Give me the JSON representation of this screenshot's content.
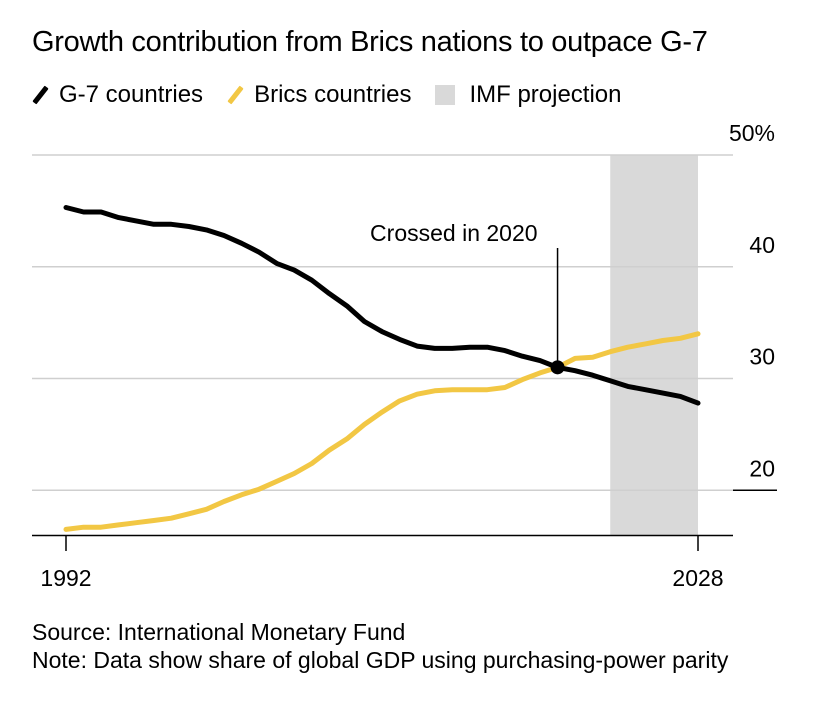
{
  "title": "Growth contribution from Brics nations to outpace G-7",
  "legend": [
    {
      "label": "G-7 countries",
      "color": "#000000",
      "kind": "line"
    },
    {
      "label": "Brics countries",
      "color": "#f2c744",
      "kind": "line"
    },
    {
      "label": "IMF projection",
      "color": "#d9d9d9",
      "kind": "box"
    }
  ],
  "chart_data": {
    "type": "line",
    "title": "Growth contribution from Brics nations to outpace G-7",
    "xlim": [
      1992,
      2028
    ],
    "ylim": [
      16,
      50
    ],
    "x_tick_labels": [
      "1992",
      "2028"
    ],
    "y_ticks": [
      {
        "value": 50,
        "label": "50%"
      },
      {
        "value": 40,
        "label": "40"
      },
      {
        "value": 30,
        "label": "30"
      },
      {
        "value": 20,
        "label": "20"
      }
    ],
    "grid": true,
    "shaded_region": {
      "label": "IMF projection",
      "x_start": 2023,
      "x_end": 2028
    },
    "series": [
      {
        "name": "G-7 countries",
        "color": "#000000",
        "x": [
          1992,
          1993,
          1994,
          1995,
          1996,
          1997,
          1998,
          1999,
          2000,
          2001,
          2002,
          2003,
          2004,
          2005,
          2006,
          2007,
          2008,
          2009,
          2010,
          2011,
          2012,
          2013,
          2014,
          2015,
          2016,
          2017,
          2018,
          2019,
          2020,
          2021,
          2022,
          2023,
          2024,
          2025,
          2026,
          2027,
          2028
        ],
        "values": [
          45.3,
          44.9,
          44.9,
          44.4,
          44.1,
          43.8,
          43.8,
          43.6,
          43.3,
          42.8,
          42.1,
          41.3,
          40.3,
          39.7,
          38.8,
          37.6,
          36.5,
          35.1,
          34.2,
          33.5,
          32.9,
          32.7,
          32.7,
          32.8,
          32.8,
          32.5,
          32.0,
          31.6,
          31.0,
          30.7,
          30.3,
          29.8,
          29.3,
          29.0,
          28.7,
          28.4,
          27.8
        ]
      },
      {
        "name": "Brics countries",
        "color": "#f2c744",
        "x": [
          1992,
          1993,
          1994,
          1995,
          1996,
          1997,
          1998,
          1999,
          2000,
          2001,
          2002,
          2003,
          2004,
          2005,
          2006,
          2007,
          2008,
          2009,
          2010,
          2011,
          2012,
          2013,
          2014,
          2015,
          2016,
          2017,
          2018,
          2019,
          2020,
          2021,
          2022,
          2023,
          2024,
          2025,
          2026,
          2027,
          2028
        ],
        "values": [
          16.5,
          16.7,
          16.7,
          16.9,
          17.1,
          17.3,
          17.5,
          17.9,
          18.3,
          19.0,
          19.6,
          20.1,
          20.8,
          21.5,
          22.4,
          23.6,
          24.6,
          25.9,
          27.0,
          28.0,
          28.6,
          28.9,
          29.0,
          29.0,
          29.0,
          29.2,
          29.9,
          30.5,
          31.0,
          31.8,
          31.9,
          32.4,
          32.8,
          33.1,
          33.4,
          33.6,
          34.0
        ]
      }
    ],
    "annotation": {
      "text": "Crossed in 2020",
      "x": 2020,
      "y": 31.0
    }
  },
  "footer": {
    "source": "Source: International Monetary Fund",
    "note": "Note: Data show share of global GDP using purchasing-power parity"
  }
}
